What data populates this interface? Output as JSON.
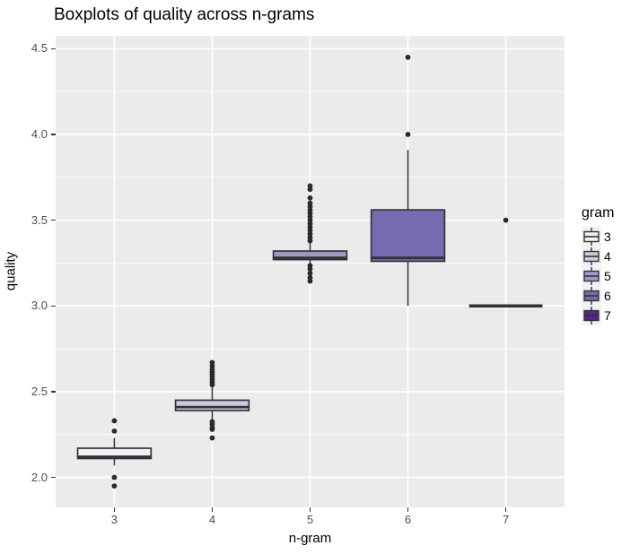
{
  "title": "Boxplots of quality across n-grams",
  "x_axis": {
    "label": "n-gram"
  },
  "y_axis": {
    "label": "quality"
  },
  "legend": {
    "title": "gram",
    "items": [
      {
        "label": "3",
        "color": "#f2f0f7"
      },
      {
        "label": "4",
        "color": "#cbc9e2"
      },
      {
        "label": "5",
        "color": "#9e9ac8"
      },
      {
        "label": "6",
        "color": "#756bb1"
      },
      {
        "label": "7",
        "color": "#54278f"
      }
    ]
  },
  "colors": {
    "panel_background": "#EBEBEB",
    "gridline": "#FFFFFF",
    "box_stroke": "#333333",
    "outlier_dot": "#2a2a2a",
    "tick_label": "#4D4D4D",
    "legend_key_background": "#F2F2F2"
  },
  "chart_data": {
    "type": "boxplot",
    "title": "Boxplots of quality across n-grams",
    "xlabel": "n-gram",
    "ylabel": "quality",
    "categories": [
      "3",
      "4",
      "5",
      "6",
      "7"
    ],
    "ylim": [
      1.825,
      4.575
    ],
    "grid": true,
    "legend_position": "right",
    "y_ticks": [
      {
        "label": "2.0",
        "value": 2.0
      },
      {
        "label": "2.5",
        "value": 2.5
      },
      {
        "label": "3.0",
        "value": 3.0
      },
      {
        "label": "3.5",
        "value": 3.5
      },
      {
        "label": "4.0",
        "value": 4.0
      },
      {
        "label": "4.5",
        "value": 4.5
      }
    ],
    "y_minor_gridlines": [
      2.25,
      2.75,
      3.25,
      3.75,
      4.25
    ],
    "series": [
      {
        "category": "3",
        "fill": "#f2f0f7",
        "q1": 2.11,
        "median": 2.12,
        "q3": 2.17,
        "whisker_low": 2.07,
        "whisker_high": 2.23,
        "outliers": [
          2.33,
          2.27,
          2.0,
          1.95
        ]
      },
      {
        "category": "4",
        "fill": "#cbc9e2",
        "q1": 2.39,
        "median": 2.41,
        "q3": 2.45,
        "whisker_low": 2.34,
        "whisker_high": 2.53,
        "outliers": [
          2.54,
          2.555,
          2.57,
          2.585,
          2.6,
          2.615,
          2.63,
          2.65,
          2.67,
          2.325,
          2.31,
          2.29,
          2.28,
          2.23
        ]
      },
      {
        "category": "5",
        "fill": "#9e9ac8",
        "q1": 3.27,
        "median": 3.28,
        "q3": 3.32,
        "whisker_low": 3.245,
        "whisker_high": 3.4,
        "outliers": [
          3.38,
          3.4,
          3.42,
          3.44,
          3.46,
          3.48,
          3.5,
          3.52,
          3.54,
          3.56,
          3.58,
          3.6,
          3.63,
          3.68,
          3.7,
          3.235,
          3.215,
          3.19,
          3.165,
          3.145
        ]
      },
      {
        "category": "6",
        "fill": "#756bb1",
        "q1": 3.26,
        "median": 3.28,
        "q3": 3.56,
        "whisker_low": 3.0,
        "whisker_high": 3.91,
        "outliers": [
          4.45,
          4.0
        ]
      },
      {
        "category": "7",
        "fill": "#54278f",
        "q1": 3.0,
        "median": 3.0,
        "q3": 3.0,
        "whisker_low": 3.0,
        "whisker_high": 3.0,
        "outliers": [
          3.5
        ]
      }
    ]
  }
}
